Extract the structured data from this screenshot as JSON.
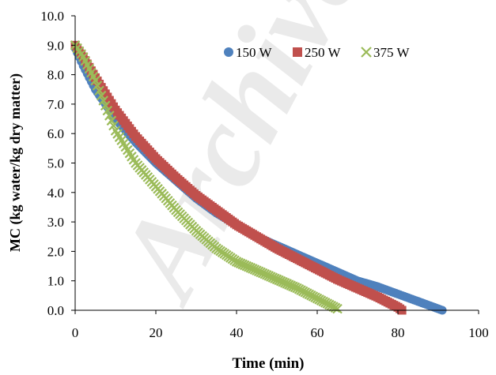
{
  "chart_data": {
    "type": "scatter",
    "xlabel": "Time (min)",
    "ylabel": "MC (kg water/kg dry matter)",
    "xlim": [
      0,
      100
    ],
    "ylim": [
      0,
      10
    ],
    "xticks": [
      "0",
      "20",
      "40",
      "60",
      "80",
      "100"
    ],
    "yticks": [
      "0.0",
      "1.0",
      "2.0",
      "3.0",
      "4.0",
      "5.0",
      "6.0",
      "7.0",
      "8.0",
      "9.0",
      "10.0"
    ],
    "grid": false,
    "legend_position": "top-right",
    "watermark": "Archive",
    "series": [
      {
        "name": "150 W",
        "marker": "circle",
        "color": "#4f81bd",
        "x": [
          0,
          2,
          5,
          10,
          15,
          20,
          25,
          30,
          35,
          40,
          45,
          50,
          55,
          60,
          65,
          70,
          75,
          80,
          85,
          90,
          91
        ],
        "y": [
          8.9,
          8.3,
          7.5,
          6.5,
          5.7,
          5.0,
          4.4,
          3.8,
          3.3,
          2.9,
          2.5,
          2.2,
          1.9,
          1.6,
          1.3,
          1.0,
          0.8,
          0.55,
          0.3,
          0.05,
          0.0
        ]
      },
      {
        "name": "250 W",
        "marker": "square",
        "color": "#c0504d",
        "x": [
          0,
          2,
          5,
          10,
          15,
          20,
          25,
          30,
          35,
          40,
          45,
          50,
          55,
          60,
          65,
          70,
          75,
          80,
          81
        ],
        "y": [
          9.0,
          8.6,
          7.9,
          6.8,
          5.9,
          5.15,
          4.5,
          3.9,
          3.4,
          2.9,
          2.5,
          2.1,
          1.75,
          1.4,
          1.05,
          0.75,
          0.45,
          0.1,
          0.0
        ]
      },
      {
        "name": "375 W",
        "marker": "x",
        "color": "#9bbb59",
        "x": [
          0,
          2,
          5,
          10,
          15,
          20,
          25,
          30,
          35,
          40,
          45,
          50,
          55,
          60,
          65
        ],
        "y": [
          9.0,
          8.6,
          7.8,
          6.1,
          5.0,
          4.2,
          3.4,
          2.7,
          2.1,
          1.65,
          1.35,
          1.05,
          0.75,
          0.4,
          0.05
        ]
      }
    ]
  }
}
